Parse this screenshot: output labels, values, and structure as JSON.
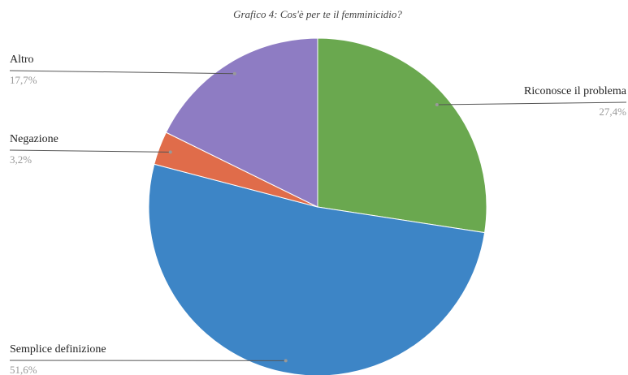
{
  "chart_data": {
    "type": "pie",
    "title": "Grafico 4: Cos'è per te il femminicidio?",
    "categories": [
      "Riconosce il problema",
      "Semplice definizione",
      "Negazione",
      "Altro"
    ],
    "values": [
      27.4,
      51.6,
      3.2,
      17.7
    ],
    "value_labels": [
      "27,4%",
      "51,6%",
      "3,2%",
      "17,7%"
    ],
    "colors": [
      "#6aa84f",
      "#3d85c6",
      "#e06c4a",
      "#8e7cc3"
    ]
  }
}
